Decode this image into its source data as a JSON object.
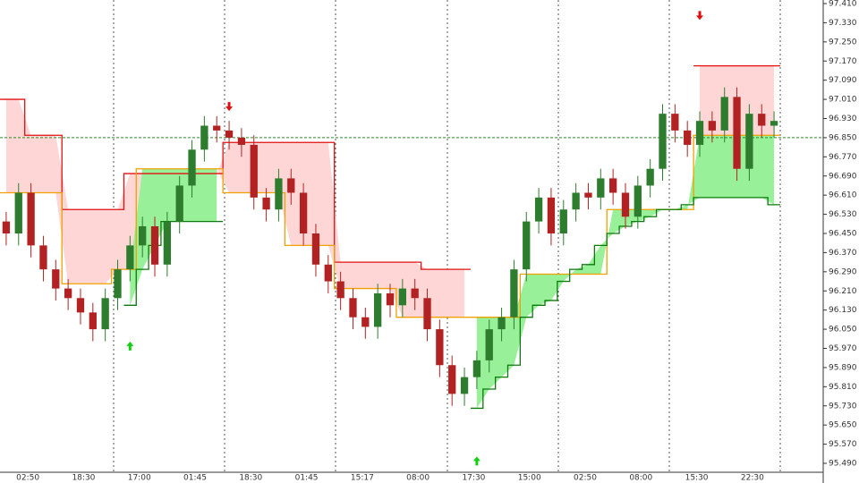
{
  "chart_data": {
    "type": "candlestick",
    "ylim": [
      95.49,
      97.41
    ],
    "yticks": [
      {
        "value": 97.41,
        "label": "97.410"
      },
      {
        "value": 97.33,
        "label": "97.330"
      },
      {
        "value": 97.25,
        "label": "97.250"
      },
      {
        "value": 97.17,
        "label": "97.170"
      },
      {
        "value": 97.09,
        "label": "97.090"
      },
      {
        "value": 97.01,
        "label": "97.010"
      },
      {
        "value": 96.93,
        "label": "96.930"
      },
      {
        "value": 96.85,
        "label": "96.850"
      },
      {
        "value": 96.77,
        "label": "96.770"
      },
      {
        "value": 96.69,
        "label": "96.690"
      },
      {
        "value": 96.61,
        "label": "96.610"
      },
      {
        "value": 96.53,
        "label": "96.530"
      },
      {
        "value": 96.45,
        "label": "96.450"
      },
      {
        "value": 96.37,
        "label": "96.370"
      },
      {
        "value": 96.29,
        "label": "96.290"
      },
      {
        "value": 96.21,
        "label": "96.210"
      },
      {
        "value": 96.13,
        "label": "96.130"
      },
      {
        "value": 96.05,
        "label": "96.050"
      },
      {
        "value": 95.97,
        "label": "95.970"
      },
      {
        "value": 95.89,
        "label": "95.890"
      },
      {
        "value": 95.81,
        "label": "95.810"
      },
      {
        "value": 95.73,
        "label": "95.730"
      },
      {
        "value": 95.65,
        "label": "95.650"
      },
      {
        "value": 95.57,
        "label": "95.570"
      },
      {
        "value": 95.49,
        "label": "95.490"
      }
    ],
    "time_labels": [
      "02:50",
      "18:30",
      "17:00",
      "01:45",
      "18:30",
      "01:45",
      "15:17",
      "08:00",
      "17:30",
      "15:00",
      "02:50",
      "08:00",
      "15:30",
      "22:30"
    ],
    "up_color": "#2e7d2e",
    "down_color": "#b22222",
    "open": [
      96.5,
      96.45,
      96.62,
      96.4,
      96.3,
      96.22,
      96.18,
      96.12,
      96.05,
      96.18,
      96.3,
      96.4,
      96.48,
      96.32,
      96.5,
      96.65,
      96.8,
      96.9,
      96.88,
      96.85,
      96.82,
      96.6,
      96.55,
      96.68,
      96.62,
      96.45,
      96.32,
      96.25,
      96.18,
      96.1,
      96.06,
      96.2,
      96.15,
      96.22,
      96.18,
      96.05,
      95.9,
      95.78,
      95.85,
      95.92,
      96.05,
      96.1,
      96.3,
      96.5,
      96.6,
      96.45,
      96.55,
      96.62,
      96.6,
      96.68,
      96.62,
      96.52,
      96.65,
      96.72,
      96.95,
      96.88,
      96.82,
      96.92,
      96.88,
      97.02,
      96.72,
      96.95,
      96.9
    ],
    "high": [
      96.54,
      96.66,
      96.66,
      96.44,
      96.34,
      96.26,
      96.22,
      96.16,
      96.22,
      96.34,
      96.44,
      96.52,
      96.52,
      96.54,
      96.69,
      96.84,
      96.94,
      96.94,
      96.92,
      96.89,
      96.86,
      96.64,
      96.72,
      96.72,
      96.66,
      96.49,
      96.36,
      96.29,
      96.22,
      96.14,
      96.24,
      96.24,
      96.26,
      96.26,
      96.22,
      96.09,
      95.94,
      95.89,
      95.96,
      96.09,
      96.14,
      96.34,
      96.54,
      96.64,
      96.64,
      96.59,
      96.66,
      96.66,
      96.72,
      96.72,
      96.66,
      96.69,
      96.76,
      96.99,
      96.99,
      96.92,
      96.96,
      96.96,
      97.06,
      97.06,
      96.99,
      96.99,
      96.96
    ],
    "low": [
      96.4,
      96.4,
      96.35,
      96.25,
      96.17,
      96.13,
      96.07,
      96.0,
      96.0,
      96.13,
      96.25,
      96.35,
      96.27,
      96.27,
      96.45,
      96.6,
      96.75,
      96.83,
      96.8,
      96.77,
      96.55,
      96.5,
      96.5,
      96.57,
      96.4,
      96.27,
      96.2,
      96.13,
      96.05,
      96.01,
      96.01,
      96.1,
      96.1,
      96.13,
      96.0,
      95.85,
      95.73,
      95.73,
      95.8,
      95.87,
      96.0,
      96.05,
      96.25,
      96.45,
      96.4,
      96.4,
      96.5,
      96.55,
      96.55,
      96.57,
      96.47,
      96.47,
      96.6,
      96.67,
      96.83,
      96.77,
      96.77,
      96.83,
      96.83,
      96.67,
      96.67,
      96.85,
      96.85
    ],
    "close": [
      96.45,
      96.62,
      96.4,
      96.3,
      96.22,
      96.18,
      96.12,
      96.05,
      96.18,
      96.3,
      96.4,
      96.48,
      96.32,
      96.5,
      96.65,
      96.8,
      96.9,
      96.88,
      96.85,
      96.82,
      96.6,
      96.55,
      96.68,
      96.62,
      96.45,
      96.32,
      96.25,
      96.18,
      96.1,
      96.06,
      96.2,
      96.15,
      96.22,
      96.18,
      96.05,
      95.9,
      95.78,
      95.85,
      95.92,
      96.05,
      96.1,
      96.3,
      96.5,
      96.6,
      96.45,
      96.55,
      96.62,
      96.6,
      96.68,
      96.62,
      96.52,
      96.65,
      96.72,
      96.95,
      96.88,
      96.82,
      96.92,
      96.88,
      97.02,
      96.72,
      96.95,
      96.9,
      96.92
    ],
    "series": [
      {
        "color": "#e01010",
        "fill": "#ffd6d6",
        "values": [
          97.01,
          97.01,
          96.86,
          96.86,
          96.86,
          96.55,
          96.55,
          96.55,
          96.55,
          96.55,
          96.7,
          96.7,
          96.7,
          96.7,
          96.7,
          96.7,
          96.7,
          96.7,
          96.83,
          96.83,
          96.83,
          96.83,
          96.83,
          96.83,
          96.83,
          96.83,
          96.83,
          96.33,
          96.33,
          96.33,
          96.33,
          96.33,
          96.33,
          96.33,
          96.3,
          96.3,
          96.3,
          96.3,
          null,
          null,
          null,
          null,
          null,
          null,
          null,
          null,
          null,
          null,
          null,
          null,
          null,
          null,
          null,
          null,
          null,
          null,
          97.15,
          97.15,
          97.15,
          97.15,
          97.15,
          97.15,
          97.15
        ]
      },
      {
        "color": "#f0a000",
        "values": [
          96.62,
          96.62,
          96.62,
          96.62,
          96.62,
          96.24,
          96.24,
          96.24,
          96.24,
          96.3,
          96.3,
          96.72,
          96.72,
          96.72,
          96.72,
          96.72,
          96.72,
          96.72,
          96.62,
          96.62,
          96.62,
          96.62,
          96.62,
          96.4,
          96.4,
          96.4,
          96.4,
          96.22,
          96.22,
          96.22,
          96.22,
          96.22,
          96.1,
          96.1,
          96.1,
          96.1,
          96.1,
          96.1,
          96.1,
          96.1,
          96.1,
          96.1,
          96.28,
          96.28,
          96.28,
          96.28,
          96.28,
          96.28,
          96.28,
          96.55,
          96.55,
          96.55,
          96.55,
          96.55,
          96.55,
          96.55,
          96.86,
          96.86,
          96.86,
          96.86,
          96.86,
          96.86,
          96.86
        ]
      },
      {
        "color": "#0a7a0a",
        "fill": "#98f098",
        "values": [
          null,
          null,
          null,
          null,
          null,
          null,
          null,
          null,
          null,
          null,
          96.15,
          96.3,
          96.4,
          96.5,
          96.5,
          96.5,
          96.5,
          96.5,
          null,
          null,
          null,
          null,
          null,
          null,
          null,
          null,
          null,
          null,
          null,
          null,
          null,
          null,
          null,
          null,
          null,
          null,
          null,
          null,
          95.72,
          95.8,
          95.85,
          95.9,
          96.1,
          96.15,
          96.17,
          96.25,
          96.3,
          96.32,
          96.4,
          96.45,
          96.48,
          96.5,
          96.52,
          96.55,
          96.55,
          96.57,
          96.6,
          96.6,
          96.6,
          96.6,
          96.6,
          96.6,
          96.57
        ]
      }
    ],
    "price_line": 96.85,
    "buy_signals": [
      {
        "index": 10,
        "price": 95.98
      },
      {
        "index": 38,
        "price": 95.5
      }
    ],
    "sell_signals": [
      {
        "index": 18,
        "price": 96.98
      },
      {
        "index": 56,
        "price": 97.36
      }
    ]
  }
}
